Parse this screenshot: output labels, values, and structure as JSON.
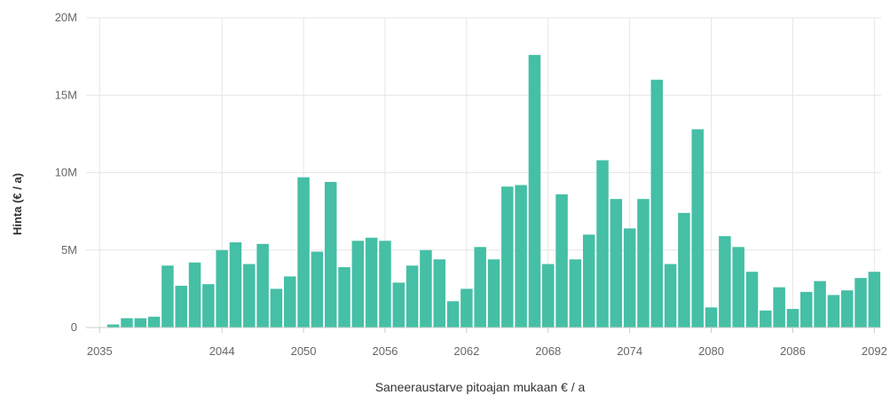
{
  "chart_data": {
    "type": "bar",
    "title": "",
    "xlabel": "Saneeraustarve pitoajan mukaan € / a",
    "ylabel": "Hinta (€ / a)",
    "ylim": [
      0,
      20000000
    ],
    "yticks": [
      0,
      5000000,
      10000000,
      15000000,
      20000000
    ],
    "ytick_labels": [
      "0",
      "5M",
      "10M",
      "15M",
      "20M"
    ],
    "xtick_labels": [
      "2035",
      "2044",
      "2050",
      "2056",
      "2062",
      "2068",
      "2074",
      "2080",
      "2086",
      "2092"
    ],
    "bar_color": "#45bfa5",
    "grid": true,
    "categories": [
      2036,
      2037,
      2038,
      2039,
      2040,
      2041,
      2042,
      2043,
      2044,
      2045,
      2046,
      2047,
      2048,
      2049,
      2050,
      2051,
      2052,
      2053,
      2054,
      2055,
      2056,
      2057,
      2058,
      2059,
      2060,
      2061,
      2062,
      2063,
      2064,
      2065,
      2066,
      2067,
      2068,
      2069,
      2070,
      2071,
      2072,
      2073,
      2074,
      2075,
      2076,
      2077,
      2078,
      2079,
      2080,
      2081,
      2082,
      2083,
      2084,
      2085,
      2086,
      2087,
      2088,
      2089,
      2090,
      2091,
      2092
    ],
    "values": [
      200000,
      600000,
      600000,
      700000,
      4000000,
      2700000,
      4200000,
      2800000,
      5000000,
      5500000,
      4100000,
      5400000,
      2500000,
      3300000,
      9700000,
      4900000,
      9400000,
      3900000,
      5600000,
      5800000,
      5600000,
      2900000,
      4000000,
      5000000,
      4400000,
      1700000,
      2500000,
      5200000,
      4400000,
      9100000,
      9200000,
      17600000,
      4100000,
      8600000,
      4400000,
      6000000,
      10800000,
      8300000,
      6400000,
      8300000,
      16000000,
      4100000,
      7400000,
      12800000,
      1300000,
      5900000,
      5200000,
      3600000,
      1100000,
      2600000,
      1200000,
      2300000,
      3000000,
      2100000,
      2400000,
      3200000,
      3600000
    ]
  }
}
